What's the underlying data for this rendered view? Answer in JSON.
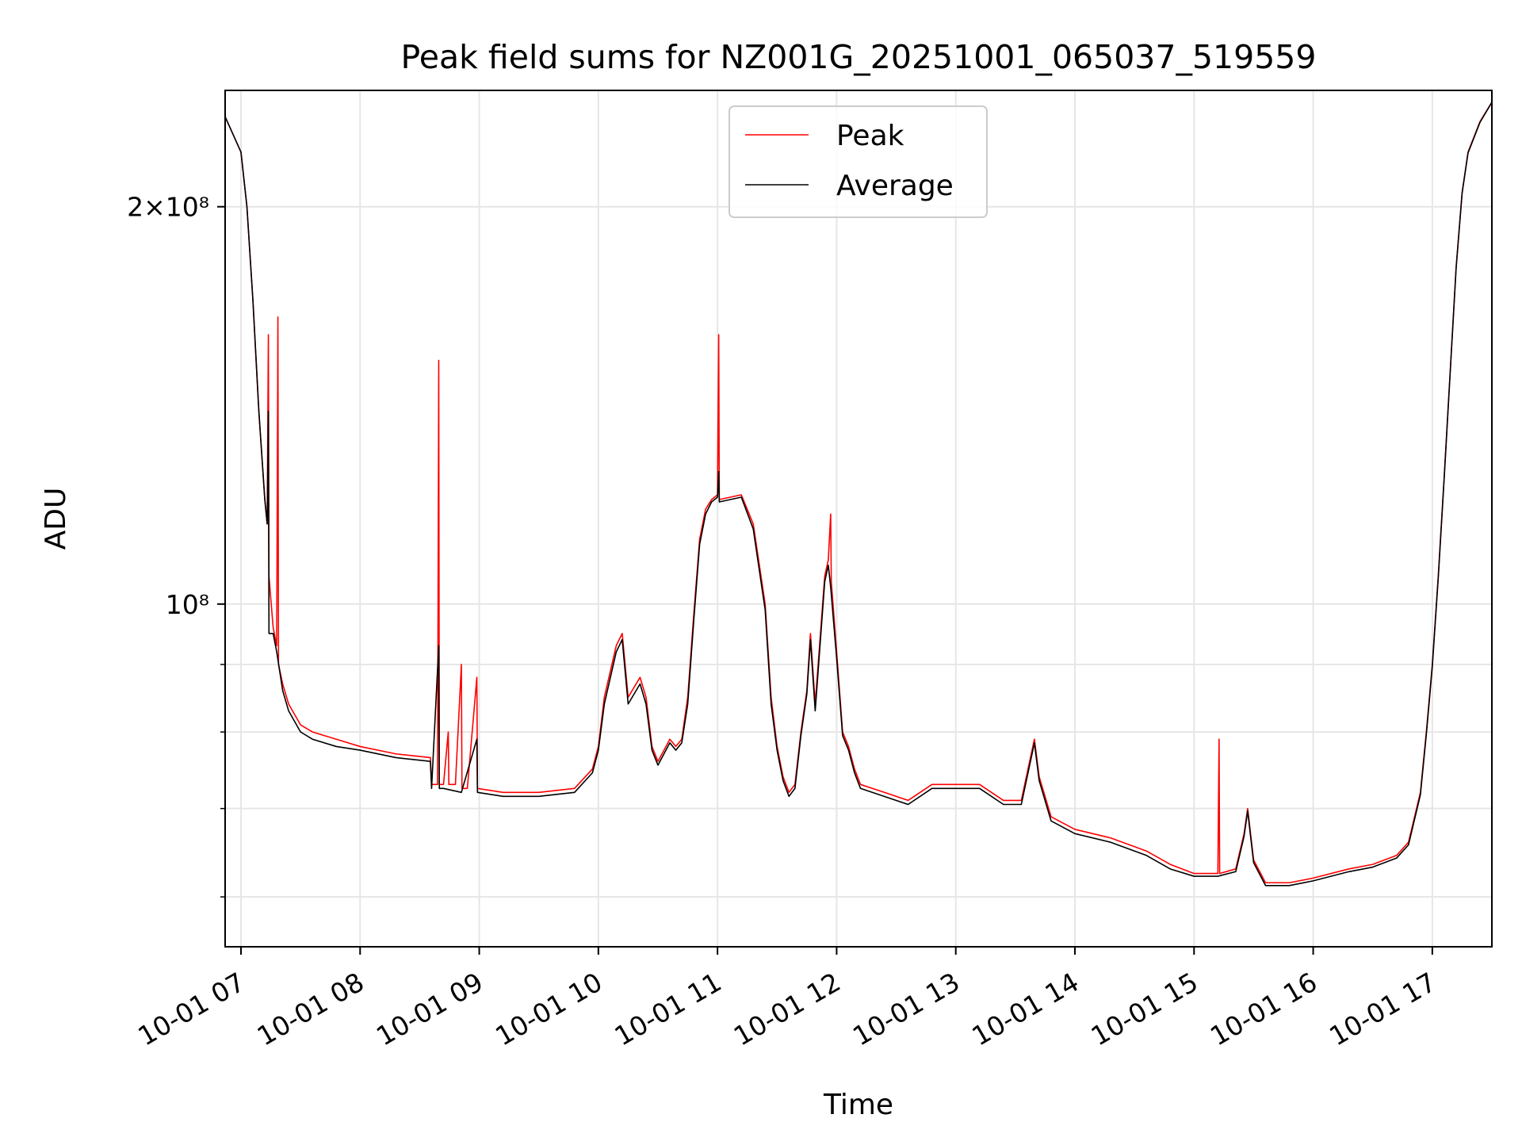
{
  "chart_data": {
    "type": "line",
    "title": "Peak field sums for NZ001G_20251001_065037_519559",
    "xlabel": "Time",
    "ylabel": "ADU",
    "yscale": "log",
    "ylim": [
      55000000,
      245000000
    ],
    "xlim": [
      6.867,
      17.5
    ],
    "xticks": [
      {
        "value": 7,
        "label": "10-01 07"
      },
      {
        "value": 8,
        "label": "10-01 08"
      },
      {
        "value": 9,
        "label": "10-01 09"
      },
      {
        "value": 10,
        "label": "10-01 10"
      },
      {
        "value": 11,
        "label": "10-01 11"
      },
      {
        "value": 12,
        "label": "10-01 12"
      },
      {
        "value": 13,
        "label": "10-01 13"
      },
      {
        "value": 14,
        "label": "10-01 14"
      },
      {
        "value": 15,
        "label": "10-01 15"
      },
      {
        "value": 16,
        "label": "10-01 16"
      },
      {
        "value": 17,
        "label": "10-01 17"
      }
    ],
    "ytick_labels": [
      {
        "value": 200000000,
        "label": "2×10⁸"
      },
      {
        "value": 100000000,
        "label": "10⁸"
      }
    ],
    "yminor_ticks": [
      60000000,
      70000000,
      80000000,
      90000000
    ],
    "grid": true,
    "legend": {
      "position": "top-center",
      "entries": [
        "Peak",
        "Average"
      ]
    },
    "series": [
      {
        "name": "Peak",
        "color": "#ff0000",
        "points": [
          [
            6.867,
            234000000
          ],
          [
            7.0,
            220000000
          ],
          [
            7.05,
            200000000
          ],
          [
            7.1,
            170000000
          ],
          [
            7.15,
            140000000
          ],
          [
            7.2,
            120000000
          ],
          [
            7.22,
            115000000
          ],
          [
            7.23,
            160000000
          ],
          [
            7.235,
            105000000
          ],
          [
            7.27,
            96000000
          ],
          [
            7.3,
            93000000
          ],
          [
            7.31,
            165000000
          ],
          [
            7.315,
            90000000
          ],
          [
            7.35,
            87000000
          ],
          [
            7.4,
            84000000
          ],
          [
            7.5,
            81000000
          ],
          [
            7.6,
            80000000
          ],
          [
            7.8,
            79000000
          ],
          [
            8.0,
            78000000
          ],
          [
            8.3,
            77000000
          ],
          [
            8.59,
            76500000
          ],
          [
            8.6,
            73000000
          ],
          [
            8.65,
            73000000
          ],
          [
            8.66,
            153000000
          ],
          [
            8.665,
            73000000
          ],
          [
            8.7,
            73000000
          ],
          [
            8.74,
            80000000
          ],
          [
            8.745,
            73000000
          ],
          [
            8.8,
            73000000
          ],
          [
            8.85,
            90000000
          ],
          [
            8.855,
            72500000
          ],
          [
            8.9,
            72500000
          ],
          [
            8.98,
            88000000
          ],
          [
            8.985,
            72500000
          ],
          [
            9.2,
            72000000
          ],
          [
            9.5,
            72000000
          ],
          [
            9.8,
            72500000
          ],
          [
            9.95,
            75000000
          ],
          [
            10.0,
            78000000
          ],
          [
            10.05,
            85000000
          ],
          [
            10.15,
            93000000
          ],
          [
            10.2,
            95000000
          ],
          [
            10.25,
            85000000
          ],
          [
            10.35,
            88000000
          ],
          [
            10.4,
            85000000
          ],
          [
            10.45,
            78000000
          ],
          [
            10.5,
            76000000
          ],
          [
            10.6,
            79000000
          ],
          [
            10.65,
            78000000
          ],
          [
            10.7,
            79000000
          ],
          [
            10.75,
            85000000
          ],
          [
            10.8,
            98000000
          ],
          [
            10.85,
            112000000
          ],
          [
            10.9,
            118000000
          ],
          [
            10.95,
            120000000
          ],
          [
            11.0,
            121000000
          ],
          [
            11.01,
            160000000
          ],
          [
            11.015,
            120000000
          ],
          [
            11.2,
            121000000
          ],
          [
            11.3,
            115000000
          ],
          [
            11.4,
            100000000
          ],
          [
            11.45,
            85000000
          ],
          [
            11.5,
            78000000
          ],
          [
            11.55,
            74000000
          ],
          [
            11.6,
            72000000
          ],
          [
            11.65,
            73000000
          ],
          [
            11.7,
            80000000
          ],
          [
            11.75,
            86000000
          ],
          [
            11.78,
            95000000
          ],
          [
            11.82,
            84000000
          ],
          [
            11.9,
            105000000
          ],
          [
            11.93,
            108000000
          ],
          [
            11.95,
            117000000
          ],
          [
            11.955,
            104000000
          ],
          [
            12.0,
            92000000
          ],
          [
            12.05,
            80000000
          ],
          [
            12.1,
            78000000
          ],
          [
            12.15,
            75000000
          ],
          [
            12.2,
            73000000
          ],
          [
            12.4,
            72000000
          ],
          [
            12.6,
            71000000
          ],
          [
            12.8,
            73000000
          ],
          [
            13.0,
            73000000
          ],
          [
            13.2,
            73000000
          ],
          [
            13.4,
            71000000
          ],
          [
            13.55,
            71000000
          ],
          [
            13.62,
            76000000
          ],
          [
            13.66,
            79000000
          ],
          [
            13.7,
            74000000
          ],
          [
            13.8,
            69000000
          ],
          [
            14.0,
            67500000
          ],
          [
            14.3,
            66500000
          ],
          [
            14.6,
            65000000
          ],
          [
            14.8,
            63500000
          ],
          [
            15.0,
            62500000
          ],
          [
            15.2,
            62500000
          ],
          [
            15.21,
            79000000
          ],
          [
            15.215,
            62500000
          ],
          [
            15.35,
            63000000
          ],
          [
            15.42,
            67000000
          ],
          [
            15.45,
            70000000
          ],
          [
            15.5,
            64000000
          ],
          [
            15.6,
            61500000
          ],
          [
            15.8,
            61500000
          ],
          [
            16.0,
            62000000
          ],
          [
            16.3,
            63000000
          ],
          [
            16.5,
            63500000
          ],
          [
            16.7,
            64500000
          ],
          [
            16.8,
            66000000
          ],
          [
            16.9,
            72000000
          ],
          [
            16.95,
            80000000
          ],
          [
            17.0,
            90000000
          ],
          [
            17.05,
            105000000
          ],
          [
            17.1,
            125000000
          ],
          [
            17.15,
            150000000
          ],
          [
            17.2,
            180000000
          ],
          [
            17.25,
            205000000
          ],
          [
            17.3,
            220000000
          ],
          [
            17.4,
            232000000
          ],
          [
            17.5,
            240000000
          ]
        ]
      },
      {
        "name": "Average",
        "color": "#000000",
        "points": [
          [
            6.867,
            234000000
          ],
          [
            7.0,
            220000000
          ],
          [
            7.05,
            200000000
          ],
          [
            7.1,
            170000000
          ],
          [
            7.15,
            140000000
          ],
          [
            7.2,
            120000000
          ],
          [
            7.22,
            115000000
          ],
          [
            7.23,
            140000000
          ],
          [
            7.235,
            95000000
          ],
          [
            7.27,
            95000000
          ],
          [
            7.3,
            92000000
          ],
          [
            7.35,
            86000000
          ],
          [
            7.4,
            83000000
          ],
          [
            7.5,
            80000000
          ],
          [
            7.6,
            79000000
          ],
          [
            7.8,
            78000000
          ],
          [
            8.0,
            77500000
          ],
          [
            8.3,
            76500000
          ],
          [
            8.59,
            76000000
          ],
          [
            8.6,
            72500000
          ],
          [
            8.66,
            93000000
          ],
          [
            8.665,
            72500000
          ],
          [
            8.7,
            72500000
          ],
          [
            8.85,
            72000000
          ],
          [
            8.98,
            79000000
          ],
          [
            8.985,
            72000000
          ],
          [
            9.2,
            71500000
          ],
          [
            9.5,
            71500000
          ],
          [
            9.8,
            72000000
          ],
          [
            9.95,
            74500000
          ],
          [
            10.0,
            77500000
          ],
          [
            10.05,
            84000000
          ],
          [
            10.15,
            92000000
          ],
          [
            10.2,
            94000000
          ],
          [
            10.25,
            84000000
          ],
          [
            10.35,
            87000000
          ],
          [
            10.4,
            84000000
          ],
          [
            10.45,
            77500000
          ],
          [
            10.5,
            75500000
          ],
          [
            10.6,
            78500000
          ],
          [
            10.65,
            77500000
          ],
          [
            10.7,
            78500000
          ],
          [
            10.75,
            84000000
          ],
          [
            10.8,
            97000000
          ],
          [
            10.85,
            111000000
          ],
          [
            10.9,
            117000000
          ],
          [
            10.95,
            119500000
          ],
          [
            11.0,
            120500000
          ],
          [
            11.01,
            126000000
          ],
          [
            11.015,
            119500000
          ],
          [
            11.2,
            120500000
          ],
          [
            11.3,
            114000000
          ],
          [
            11.4,
            99000000
          ],
          [
            11.45,
            84000000
          ],
          [
            11.5,
            77500000
          ],
          [
            11.55,
            73500000
          ],
          [
            11.6,
            71500000
          ],
          [
            11.65,
            72500000
          ],
          [
            11.7,
            79500000
          ],
          [
            11.75,
            85500000
          ],
          [
            11.78,
            94000000
          ],
          [
            11.82,
            83000000
          ],
          [
            11.9,
            104000000
          ],
          [
            11.93,
            107000000
          ],
          [
            11.95,
            103000000
          ],
          [
            12.0,
            91000000
          ],
          [
            12.05,
            79500000
          ],
          [
            12.1,
            77500000
          ],
          [
            12.15,
            74500000
          ],
          [
            12.2,
            72500000
          ],
          [
            12.4,
            71500000
          ],
          [
            12.6,
            70500000
          ],
          [
            12.8,
            72500000
          ],
          [
            13.0,
            72500000
          ],
          [
            13.2,
            72500000
          ],
          [
            13.4,
            70500000
          ],
          [
            13.55,
            70500000
          ],
          [
            13.62,
            75500000
          ],
          [
            13.66,
            78500000
          ],
          [
            13.7,
            73500000
          ],
          [
            13.8,
            68500000
          ],
          [
            14.0,
            67000000
          ],
          [
            14.3,
            66000000
          ],
          [
            14.6,
            64500000
          ],
          [
            14.8,
            63000000
          ],
          [
            15.0,
            62200000
          ],
          [
            15.2,
            62200000
          ],
          [
            15.35,
            62700000
          ],
          [
            15.42,
            66700000
          ],
          [
            15.45,
            69700000
          ],
          [
            15.5,
            63700000
          ],
          [
            15.6,
            61200000
          ],
          [
            15.8,
            61200000
          ],
          [
            16.0,
            61700000
          ],
          [
            16.3,
            62700000
          ],
          [
            16.5,
            63200000
          ],
          [
            16.7,
            64200000
          ],
          [
            16.8,
            65700000
          ],
          [
            16.9,
            71700000
          ],
          [
            16.95,
            79700000
          ],
          [
            17.0,
            89700000
          ],
          [
            17.05,
            104700000
          ],
          [
            17.1,
            124700000
          ],
          [
            17.15,
            149700000
          ],
          [
            17.2,
            179700000
          ],
          [
            17.25,
            204700000
          ],
          [
            17.3,
            219700000
          ],
          [
            17.4,
            231700000
          ],
          [
            17.5,
            240000000
          ]
        ]
      }
    ]
  }
}
